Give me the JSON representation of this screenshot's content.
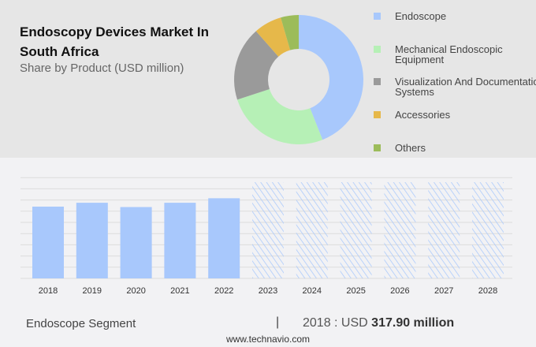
{
  "chart_data": [
    {
      "type": "pie",
      "variant": "donut",
      "title": "Endoscopy Devices Market In South Africa",
      "subtitle": "Share by Product (USD million)",
      "legend_position": "right",
      "slices": [
        {
          "name": "Endoscope",
          "value": 44,
          "color": "#a8c8fc"
        },
        {
          "name": "Mechanical Endoscopic Equipment",
          "value": 26,
          "color": "#b6f0b6"
        },
        {
          "name": "Visualization And Documentation Systems",
          "value": 18.5,
          "color": "#9a9a9a"
        },
        {
          "name": "Accessories",
          "value": 7,
          "color": "#e6b84a"
        },
        {
          "name": "Others",
          "value": 4.5,
          "color": "#9cbc5a"
        }
      ]
    },
    {
      "type": "bar",
      "categories": [
        "2018",
        "2019",
        "2020",
        "2021",
        "2022",
        "2023",
        "2024",
        "2025",
        "2026",
        "2027",
        "2028"
      ],
      "values": [
        317.9,
        335,
        316,
        335,
        355,
        null,
        null,
        null,
        null,
        null,
        null
      ],
      "forecast": [
        false,
        false,
        false,
        false,
        false,
        true,
        true,
        true,
        true,
        true,
        true
      ],
      "color": "#a8c8fc",
      "grid": true
    }
  ],
  "footer": {
    "segment": "Endoscope Segment",
    "separator": "|",
    "year_label": "2018 : USD",
    "value": "317.90 million",
    "site": "www.technavio.com"
  }
}
